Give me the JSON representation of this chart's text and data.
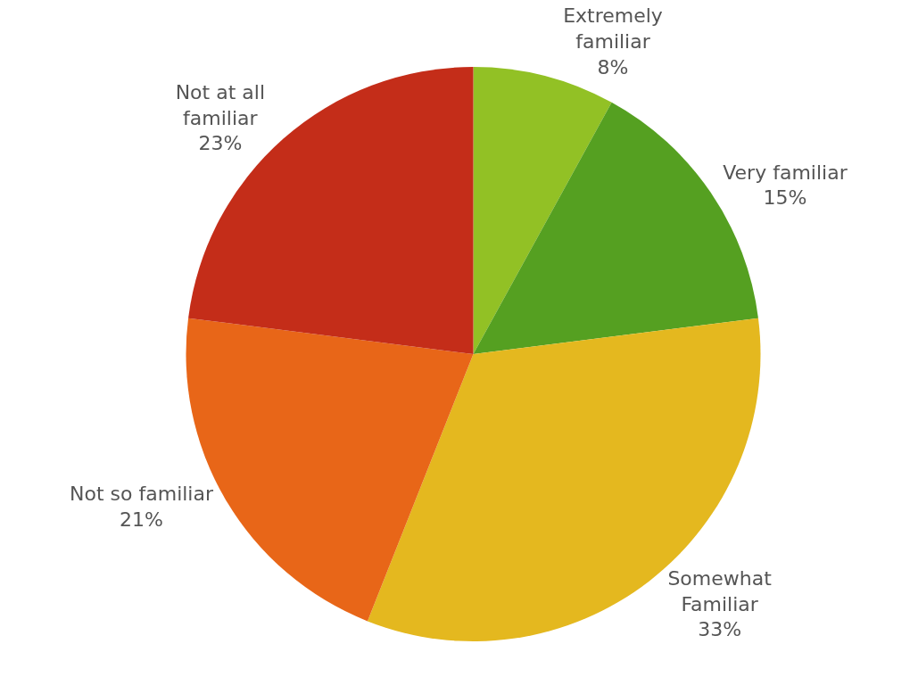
{
  "chart_data": {
    "type": "pie",
    "categories": [
      "Extremely familiar",
      "Very familiar",
      "Somewhat Familiar",
      "Not so familiar",
      "Not at all familiar"
    ],
    "values": [
      8,
      15,
      33,
      21,
      23
    ],
    "colors": [
      "#92c125",
      "#55a021",
      "#e4b81f",
      "#e86618",
      "#c42d19"
    ],
    "value_labels": [
      "8%",
      "15%",
      "33%",
      "21%",
      "23%"
    ],
    "legend": false
  }
}
